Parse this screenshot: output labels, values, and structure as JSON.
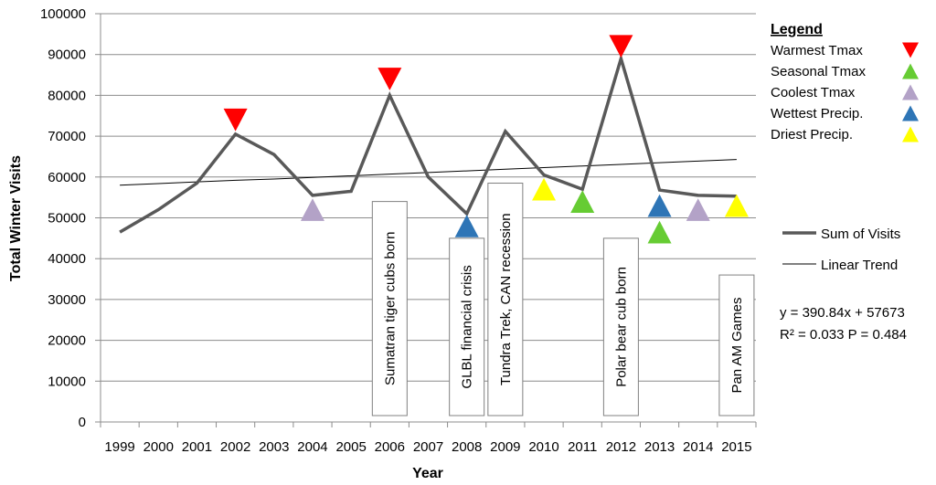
{
  "chart_data": {
    "type": "line",
    "xlabel": "Year",
    "ylabel": "Total Winter Visits",
    "ylim": [
      0,
      100000
    ],
    "y_ticks": [
      "0",
      "10000",
      "20000",
      "30000",
      "40000",
      "50000",
      "60000",
      "70000",
      "80000",
      "90000",
      "100000"
    ],
    "x": [
      "1999",
      "2000",
      "2001",
      "2002",
      "2003",
      "2004",
      "2005",
      "2006",
      "2007",
      "2008",
      "2009",
      "2010",
      "2011",
      "2012",
      "2013",
      "2014",
      "2015"
    ],
    "grid": "horizontal",
    "series": [
      {
        "name": "Sum of Visits",
        "color": "#595959",
        "values": [
          46500,
          52000,
          58500,
          70500,
          65500,
          55500,
          56500,
          80000,
          60000,
          51000,
          71200,
          60500,
          57000,
          89000,
          56800,
          55500,
          55300
        ]
      },
      {
        "name": "Linear Trend",
        "color": "#000000",
        "style": "trend",
        "values": [
          58000,
          58400,
          58800,
          59200,
          59500,
          59900,
          60300,
          60700,
          61100,
          61500,
          61900,
          62300,
          62700,
          63100,
          63500,
          63900,
          64300
        ]
      }
    ],
    "markers": [
      {
        "year": "2002",
        "y": 74000,
        "kind": "warmest",
        "color": "#ff0000",
        "direction": "down"
      },
      {
        "year": "2006",
        "y": 84000,
        "kind": "warmest",
        "color": "#ff0000",
        "direction": "down"
      },
      {
        "year": "2012",
        "y": 92000,
        "kind": "warmest",
        "color": "#ff0000",
        "direction": "down"
      },
      {
        "year": "2004",
        "y": 52000,
        "kind": "coolest",
        "color": "#b3a2c7",
        "direction": "up"
      },
      {
        "year": "2008",
        "y": 48000,
        "kind": "wettest",
        "color": "#2e75b6",
        "direction": "up"
      },
      {
        "year": "2013",
        "y": 53000,
        "kind": "wettest",
        "color": "#2e75b6",
        "direction": "up"
      },
      {
        "year": "2011",
        "y": 54000,
        "kind": "seasonal",
        "color": "#66cc33",
        "direction": "up"
      },
      {
        "year": "2013",
        "y": 46500,
        "kind": "seasonal",
        "color": "#66cc33",
        "direction": "up"
      },
      {
        "year": "2014",
        "y": 52000,
        "kind": "coolest",
        "color": "#b3a2c7",
        "direction": "up"
      },
      {
        "year": "2010",
        "y": 57000,
        "kind": "driest",
        "color": "#ffff00",
        "direction": "up"
      },
      {
        "year": "2015",
        "y": 53000,
        "kind": "driest",
        "color": "#ffff00",
        "direction": "up"
      }
    ],
    "annotations": [
      {
        "year": "2006",
        "text": "Sumatran tiger cubs born",
        "top": 54000
      },
      {
        "year": "2008",
        "text": "GLBL financial crisis",
        "top": 45000
      },
      {
        "year": "2009",
        "text": "Tundra Trek, CAN recession",
        "top": 58500
      },
      {
        "year": "2012",
        "text": "Polar bear cub born",
        "top": 45000
      },
      {
        "year": "2015",
        "text": "Pan AM Games",
        "top": 36000
      }
    ],
    "legend": {
      "title": "Legend",
      "placement": "top-right",
      "items": [
        {
          "label": "Warmest Tmax",
          "color": "#ff0000",
          "direction": "down"
        },
        {
          "label": "Seasonal Tmax",
          "color": "#66cc33",
          "direction": "up"
        },
        {
          "label": "Coolest Tmax",
          "color": "#b3a2c7",
          "direction": "up"
        },
        {
          "label": "Wettest Precip.",
          "color": "#2e75b6",
          "direction": "up"
        },
        {
          "label": "Driest Precip.",
          "color": "#ffff00",
          "direction": "up"
        }
      ]
    },
    "series_legend": {
      "placement": "right",
      "items": [
        {
          "label": "Sum of Visits"
        },
        {
          "label": "Linear Trend"
        }
      ]
    },
    "equation": "y = 390.84x + 57673",
    "stats": "R² = 0.033 P = 0.484"
  }
}
